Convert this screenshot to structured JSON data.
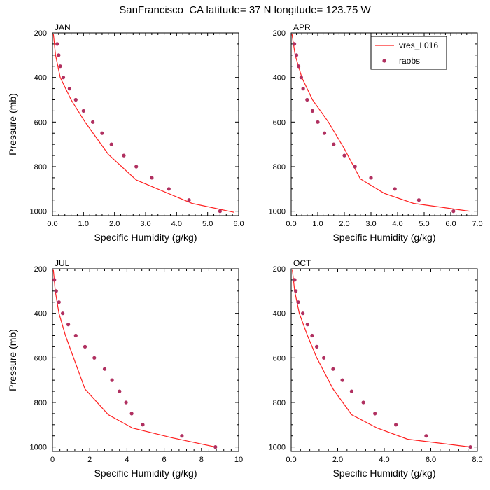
{
  "figure_title": "SanFrancisco_CA  latitude= 37 N longitude= 123.75 W",
  "legend": {
    "model_label": "vres_L016",
    "obs_label": "raobs"
  },
  "colors": {
    "model_line": "#ff2020",
    "obs_marker": "#b03060"
  },
  "chart_data": [
    {
      "type": "line",
      "panel": "JAN",
      "xlabel": "Specific Humidity (g/kg)",
      "ylabel": "Pressure (mb)",
      "xlim": [
        0,
        6
      ],
      "ylim": [
        1020,
        200
      ],
      "y_axis": "reversed",
      "x_ticks": [
        0,
        1,
        2,
        3,
        4,
        5,
        6
      ],
      "x_tick_labels": [
        "0.0",
        "1.0",
        "2.0",
        "3.0",
        "4.0",
        "5.0",
        "6.0"
      ],
      "y_ticks": [
        200,
        400,
        600,
        800,
        1000
      ],
      "y_tick_labels": [
        "200",
        "400",
        "600",
        "800",
        "1000"
      ],
      "series": [
        {
          "name": "vres_L016",
          "kind": "line",
          "x": [
            0.03,
            0.1,
            0.25,
            0.6,
            1.05,
            1.8,
            2.7,
            4.5,
            5.85
          ],
          "y": [
            205,
            300,
            400,
            500,
            600,
            745,
            860,
            965,
            1005
          ]
        },
        {
          "name": "raobs",
          "kind": "markers",
          "x": [
            0.15,
            0.2,
            0.25,
            0.35,
            0.55,
            0.75,
            1.0,
            1.3,
            1.6,
            1.9,
            2.3,
            2.7,
            3.2,
            3.75,
            4.4,
            5.4
          ],
          "y": [
            250,
            300,
            350,
            400,
            450,
            500,
            550,
            600,
            650,
            700,
            750,
            800,
            850,
            900,
            950,
            1000
          ]
        }
      ]
    },
    {
      "type": "line",
      "panel": "APR",
      "xlabel": "Specific Humidity (g/kg)",
      "ylabel": "",
      "xlim": [
        0,
        7
      ],
      "ylim": [
        1020,
        200
      ],
      "y_axis": "reversed",
      "x_ticks": [
        0,
        1,
        2,
        3,
        4,
        5,
        6,
        7
      ],
      "x_tick_labels": [
        "0.0",
        "1.0",
        "2.0",
        "3.0",
        "4.0",
        "5.0",
        "6.0",
        "7.0"
      ],
      "y_ticks": [
        200,
        400,
        600,
        800,
        1000
      ],
      "y_tick_labels": [
        "200",
        "400",
        "600",
        "800",
        "1000"
      ],
      "series": [
        {
          "name": "vres_L016",
          "kind": "line",
          "x": [
            0.03,
            0.15,
            0.4,
            0.8,
            1.4,
            2.0,
            2.6,
            3.5,
            4.6,
            6.7
          ],
          "y": [
            205,
            300,
            400,
            500,
            600,
            720,
            855,
            920,
            965,
            1000
          ]
        },
        {
          "name": "raobs",
          "kind": "markers",
          "x": [
            0.12,
            0.2,
            0.28,
            0.38,
            0.45,
            0.6,
            0.8,
            1.0,
            1.25,
            1.6,
            2.0,
            2.4,
            3.0,
            3.9,
            4.8,
            6.1
          ],
          "y": [
            250,
            300,
            350,
            400,
            450,
            500,
            550,
            600,
            650,
            700,
            750,
            800,
            850,
            900,
            950,
            1000
          ]
        }
      ]
    },
    {
      "type": "line",
      "panel": "JUL",
      "xlabel": "Specific Humidity (g/kg)",
      "ylabel": "Pressure (mb)",
      "xlim": [
        0,
        10
      ],
      "ylim": [
        1020,
        200
      ],
      "y_axis": "reversed",
      "x_ticks": [
        0,
        2,
        4,
        6,
        8,
        10
      ],
      "x_tick_labels": [
        "0",
        "2",
        "4",
        "6",
        "8",
        "10"
      ],
      "y_ticks": [
        200,
        400,
        600,
        800,
        1000
      ],
      "y_tick_labels": [
        "200",
        "400",
        "600",
        "800",
        "1000"
      ],
      "series": [
        {
          "name": "vres_L016",
          "kind": "line",
          "x": [
            0.05,
            0.15,
            0.35,
            0.7,
            1.05,
            1.75,
            3.0,
            4.3,
            6.5,
            8.75
          ],
          "y": [
            205,
            300,
            400,
            500,
            580,
            740,
            855,
            915,
            960,
            1000
          ]
        },
        {
          "name": "raobs",
          "kind": "markers",
          "x": [
            0.1,
            0.2,
            0.35,
            0.55,
            0.85,
            1.25,
            1.75,
            2.25,
            2.8,
            3.2,
            3.6,
            3.95,
            4.25,
            4.85,
            6.95,
            8.75
          ],
          "y": [
            250,
            300,
            350,
            400,
            450,
            500,
            550,
            600,
            650,
            700,
            750,
            800,
            850,
            900,
            950,
            1000
          ]
        }
      ]
    },
    {
      "type": "line",
      "panel": "OCT",
      "xlabel": "Specific Humidity (g/kg)",
      "ylabel": "",
      "xlim": [
        0,
        8
      ],
      "ylim": [
        1020,
        200
      ],
      "y_axis": "reversed",
      "x_ticks": [
        0,
        2,
        4,
        6,
        8
      ],
      "x_tick_labels": [
        "0.0",
        "2.0",
        "4.0",
        "6.0",
        "8.0"
      ],
      "y_ticks": [
        200,
        400,
        600,
        800,
        1000
      ],
      "y_tick_labels": [
        "200",
        "400",
        "600",
        "800",
        "1000"
      ],
      "series": [
        {
          "name": "vres_L016",
          "kind": "line",
          "x": [
            0.05,
            0.15,
            0.35,
            0.7,
            1.1,
            1.8,
            2.6,
            3.7,
            5.0,
            7.7
          ],
          "y": [
            205,
            300,
            400,
            500,
            600,
            740,
            855,
            915,
            965,
            1000
          ]
        },
        {
          "name": "raobs",
          "kind": "markers",
          "x": [
            0.15,
            0.2,
            0.3,
            0.5,
            0.7,
            0.9,
            1.1,
            1.4,
            1.8,
            2.2,
            2.6,
            3.1,
            3.6,
            4.5,
            5.8,
            7.7
          ],
          "y": [
            250,
            300,
            350,
            400,
            450,
            500,
            550,
            600,
            650,
            700,
            750,
            800,
            850,
            900,
            950,
            1000
          ]
        }
      ]
    }
  ]
}
